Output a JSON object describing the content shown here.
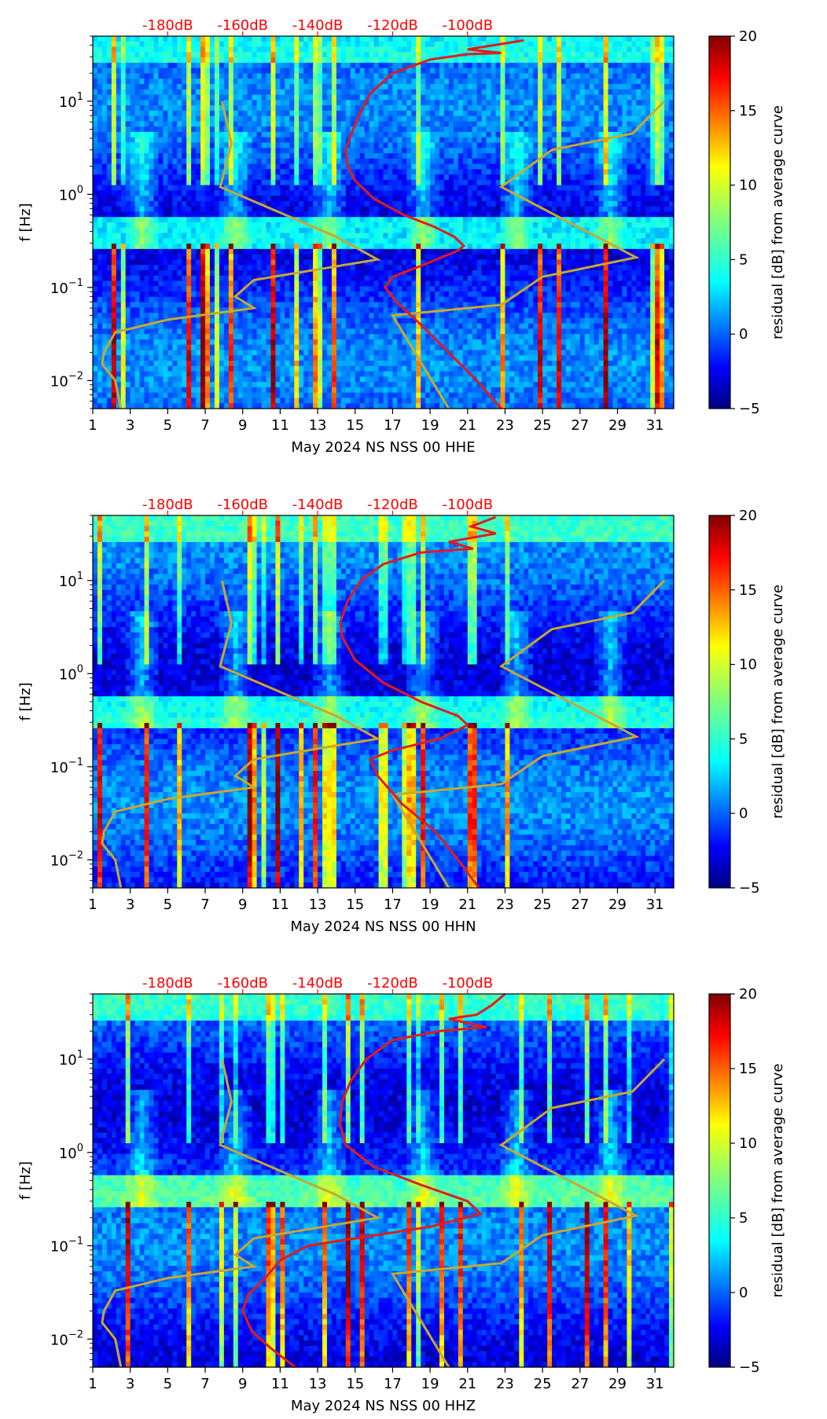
{
  "chart_data": [
    {
      "type": "heatmap",
      "name": "hhe",
      "xlabel": "May 2024 NS NSS 00 HHE",
      "ylabel": "f [Hz]",
      "x_ticks": [
        "1",
        "3",
        "5",
        "7",
        "9",
        "11",
        "13",
        "15",
        "17",
        "19",
        "21",
        "23",
        "25",
        "27",
        "29",
        "31"
      ],
      "x_range": [
        1,
        32
      ],
      "y_range_hz": [
        0.005,
        50
      ],
      "y_ticks": [
        {
          "value": 0.01,
          "base": "10",
          "exp": "−2"
        },
        {
          "value": 0.1,
          "base": "10",
          "exp": "−1"
        },
        {
          "value": 1,
          "base": "10",
          "exp": "0"
        },
        {
          "value": 10,
          "base": "10",
          "exp": "1"
        }
      ],
      "top_axis_labels": [
        "-180dB",
        "-160dB",
        "-140dB",
        "-120dB",
        "-100dB"
      ],
      "top_axis_days": [
        5.0,
        9.0,
        13.0,
        17.0,
        21.0
      ],
      "colorbar": {
        "label": "residual [dB] from average curve",
        "ticks": [
          "−5",
          "0",
          "5",
          "10",
          "15",
          "20"
        ],
        "range": [
          -5,
          20
        ]
      },
      "average_curve_day_vs_freq": [
        [
          22.8,
          0.005
        ],
        [
          21.5,
          0.01
        ],
        [
          20,
          0.02
        ],
        [
          18.5,
          0.04
        ],
        [
          17.2,
          0.07
        ],
        [
          16.6,
          0.1
        ],
        [
          17,
          0.13
        ],
        [
          18.5,
          0.17
        ],
        [
          20.5,
          0.25
        ],
        [
          20.8,
          0.28
        ],
        [
          20.3,
          0.35
        ],
        [
          19.2,
          0.45
        ],
        [
          17.6,
          0.6
        ],
        [
          16,
          0.9
        ],
        [
          15,
          1.4
        ],
        [
          14.6,
          2
        ],
        [
          14.5,
          3
        ],
        [
          14.8,
          4.5
        ],
        [
          15.2,
          7
        ],
        [
          15.8,
          12
        ],
        [
          17,
          20
        ],
        [
          19,
          28
        ],
        [
          21,
          32
        ],
        [
          22.8,
          33
        ],
        [
          21,
          36
        ],
        [
          24,
          45
        ]
      ],
      "reference_curves": [
        [
          [
            2.5,
            0.005
          ],
          [
            2.2,
            0.01
          ],
          [
            1.5,
            0.015
          ],
          [
            1.6,
            0.02
          ],
          [
            2.2,
            0.033
          ],
          [
            5,
            0.045
          ],
          [
            9.6,
            0.06
          ],
          [
            8.6,
            0.08
          ],
          [
            9.6,
            0.12
          ],
          [
            16.2,
            0.2
          ],
          [
            14,
            0.35
          ],
          [
            7.8,
            1.2
          ],
          [
            8.4,
            3.5
          ],
          [
            7.9,
            10
          ]
        ],
        [
          [
            20,
            0.005
          ],
          [
            17,
            0.05
          ],
          [
            22.8,
            0.065
          ],
          [
            25,
            0.13
          ],
          [
            30,
            0.21
          ],
          [
            22.8,
            1.2
          ],
          [
            25.5,
            3
          ],
          [
            29.8,
            4.5
          ],
          [
            31.5,
            10
          ]
        ]
      ]
    },
    {
      "type": "heatmap",
      "name": "hhn",
      "xlabel": "May 2024 NS NSS 00 HHN",
      "ylabel": "f [Hz]",
      "x_ticks": [
        "1",
        "3",
        "5",
        "7",
        "9",
        "11",
        "13",
        "15",
        "17",
        "19",
        "21",
        "23",
        "25",
        "27",
        "29",
        "31"
      ],
      "x_range": [
        1,
        32
      ],
      "y_range_hz": [
        0.005,
        50
      ],
      "y_ticks": [
        {
          "value": 0.01,
          "base": "10",
          "exp": "−2"
        },
        {
          "value": 0.1,
          "base": "10",
          "exp": "−1"
        },
        {
          "value": 1,
          "base": "10",
          "exp": "0"
        },
        {
          "value": 10,
          "base": "10",
          "exp": "1"
        }
      ],
      "top_axis_labels": [
        "-180dB",
        "-160dB",
        "-140dB",
        "-120dB",
        "-100dB"
      ],
      "top_axis_days": [
        5.0,
        9.0,
        13.0,
        17.0,
        21.0
      ],
      "colorbar": {
        "label": "residual [dB] from average curve",
        "ticks": [
          "−5",
          "0",
          "5",
          "10",
          "15",
          "20"
        ],
        "range": [
          -5,
          20
        ]
      },
      "average_curve_day_vs_freq": [
        [
          21.6,
          0.005
        ],
        [
          20.5,
          0.01
        ],
        [
          19.3,
          0.02
        ],
        [
          17.5,
          0.04
        ],
        [
          16.2,
          0.08
        ],
        [
          15.8,
          0.12
        ],
        [
          17,
          0.15
        ],
        [
          19.5,
          0.2
        ],
        [
          21,
          0.28
        ],
        [
          20.5,
          0.35
        ],
        [
          18.5,
          0.5
        ],
        [
          16.5,
          0.8
        ],
        [
          15,
          1.4
        ],
        [
          14.3,
          2.5
        ],
        [
          14.2,
          3.5
        ],
        [
          14.6,
          6
        ],
        [
          15.3,
          10
        ],
        [
          16.5,
          15
        ],
        [
          18.5,
          20
        ],
        [
          21.3,
          22
        ],
        [
          20,
          26
        ],
        [
          22.5,
          32
        ],
        [
          21.2,
          38
        ],
        [
          22.5,
          48
        ]
      ],
      "reference_curves": [
        [
          [
            2.5,
            0.005
          ],
          [
            2.2,
            0.01
          ],
          [
            1.5,
            0.015
          ],
          [
            1.6,
            0.02
          ],
          [
            2.2,
            0.033
          ],
          [
            5,
            0.045
          ],
          [
            9.6,
            0.06
          ],
          [
            8.6,
            0.08
          ],
          [
            9.6,
            0.12
          ],
          [
            16.2,
            0.2
          ],
          [
            14,
            0.35
          ],
          [
            7.8,
            1.2
          ],
          [
            8.4,
            3.5
          ],
          [
            7.9,
            10
          ]
        ],
        [
          [
            20,
            0.005
          ],
          [
            17,
            0.05
          ],
          [
            22.8,
            0.065
          ],
          [
            25,
            0.13
          ],
          [
            30,
            0.21
          ],
          [
            22.8,
            1.2
          ],
          [
            25.5,
            3
          ],
          [
            29.8,
            4.5
          ],
          [
            31.5,
            10
          ]
        ]
      ]
    },
    {
      "type": "heatmap",
      "name": "hhz",
      "xlabel": "May 2024 NS NSS 00 HHZ",
      "ylabel": "f [Hz]",
      "x_ticks": [
        "1",
        "3",
        "5",
        "7",
        "9",
        "11",
        "13",
        "15",
        "17",
        "19",
        "21",
        "23",
        "25",
        "27",
        "29",
        "31"
      ],
      "x_range": [
        1,
        32
      ],
      "y_range_hz": [
        0.005,
        50
      ],
      "y_ticks": [
        {
          "value": 0.01,
          "base": "10",
          "exp": "−2"
        },
        {
          "value": 0.1,
          "base": "10",
          "exp": "−1"
        },
        {
          "value": 1,
          "base": "10",
          "exp": "0"
        },
        {
          "value": 10,
          "base": "10",
          "exp": "1"
        }
      ],
      "top_axis_labels": [
        "-180dB",
        "-160dB",
        "-140dB",
        "-120dB",
        "-100dB"
      ],
      "top_axis_days": [
        5.0,
        9.0,
        13.0,
        17.0,
        21.0
      ],
      "colorbar": {
        "label": "residual [dB] from average curve",
        "ticks": [
          "−5",
          "0",
          "5",
          "10",
          "15",
          "20"
        ],
        "range": [
          -5,
          20
        ]
      },
      "average_curve_day_vs_freq": [
        [
          11.8,
          0.005
        ],
        [
          10.5,
          0.008
        ],
        [
          9.5,
          0.012
        ],
        [
          9,
          0.02
        ],
        [
          9.3,
          0.03
        ],
        [
          10.2,
          0.045
        ],
        [
          11,
          0.07
        ],
        [
          12.5,
          0.1
        ],
        [
          15,
          0.12
        ],
        [
          19,
          0.16
        ],
        [
          21.7,
          0.22
        ],
        [
          21,
          0.3
        ],
        [
          18.5,
          0.45
        ],
        [
          16,
          0.7
        ],
        [
          14.5,
          1.2
        ],
        [
          14.2,
          2
        ],
        [
          14.3,
          3.5
        ],
        [
          14.8,
          6
        ],
        [
          15.6,
          10
        ],
        [
          17,
          16
        ],
        [
          19.5,
          20
        ],
        [
          22,
          22
        ],
        [
          20,
          27
        ],
        [
          21.5,
          30
        ],
        [
          22.3,
          38
        ],
        [
          23,
          50
        ]
      ],
      "reference_curves": [
        [
          [
            2.5,
            0.005
          ],
          [
            2.2,
            0.01
          ],
          [
            1.5,
            0.015
          ],
          [
            1.6,
            0.02
          ],
          [
            2.2,
            0.033
          ],
          [
            5,
            0.045
          ],
          [
            9.6,
            0.06
          ],
          [
            8.6,
            0.08
          ],
          [
            9.6,
            0.12
          ],
          [
            16.2,
            0.2
          ],
          [
            14,
            0.35
          ],
          [
            7.8,
            1.2
          ],
          [
            8.4,
            3.5
          ],
          [
            7.9,
            10
          ]
        ],
        [
          [
            20,
            0.005
          ],
          [
            17,
            0.05
          ],
          [
            22.8,
            0.065
          ],
          [
            25,
            0.13
          ],
          [
            30,
            0.21
          ],
          [
            22.8,
            1.2
          ],
          [
            25.5,
            3
          ],
          [
            29.8,
            4.5
          ],
          [
            31.5,
            10
          ]
        ]
      ]
    }
  ],
  "colors": {
    "average_curve": "#e31a1c",
    "reference_curve": "#c8a830",
    "top_labels": "#ff0000",
    "colormap": [
      "#00007f",
      "#0000ff",
      "#007fff",
      "#00ffff",
      "#7fff7f",
      "#ffff00",
      "#ff7f00",
      "#ff0000",
      "#7f0000"
    ]
  }
}
